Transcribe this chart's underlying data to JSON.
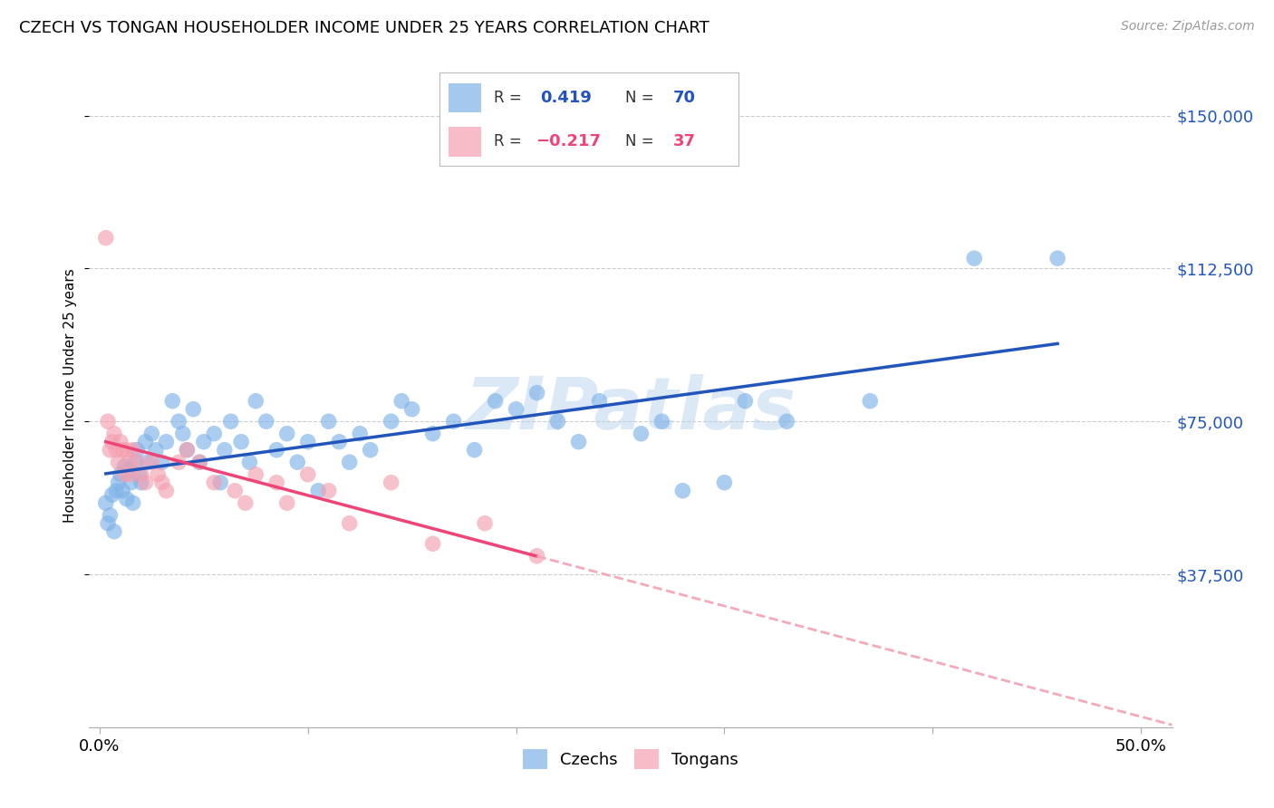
{
  "title": "CZECH VS TONGAN HOUSEHOLDER INCOME UNDER 25 YEARS CORRELATION CHART",
  "source": "Source: ZipAtlas.com",
  "ylabel": "Householder Income Under 25 years",
  "xlabel_ticks": [
    "0.0%",
    "",
    "",
    "",
    "",
    "50.0%"
  ],
  "xlabel_vals": [
    0.0,
    0.1,
    0.2,
    0.3,
    0.4,
    0.5
  ],
  "ytick_labels": [
    "$37,500",
    "$75,000",
    "$112,500",
    "$150,000"
  ],
  "ytick_vals": [
    37500,
    75000,
    112500,
    150000
  ],
  "ymin": 0,
  "ymax": 162500,
  "xmin": -0.005,
  "xmax": 0.515,
  "czech_color": "#7FB3E8",
  "tongan_color": "#F4A0B0",
  "czech_line_color": "#2255BB",
  "tongan_line_color": "#EE4477",
  "tongan_dashed_color": "#F4AABB",
  "watermark_color": "#B8D4EE",
  "czechs_x": [
    0.003,
    0.004,
    0.005,
    0.006,
    0.007,
    0.008,
    0.009,
    0.01,
    0.011,
    0.012,
    0.013,
    0.014,
    0.015,
    0.016,
    0.017,
    0.018,
    0.019,
    0.02,
    0.022,
    0.023,
    0.025,
    0.027,
    0.03,
    0.032,
    0.035,
    0.038,
    0.04,
    0.042,
    0.045,
    0.048,
    0.05,
    0.055,
    0.058,
    0.06,
    0.063,
    0.068,
    0.072,
    0.075,
    0.08,
    0.085,
    0.09,
    0.095,
    0.1,
    0.105,
    0.11,
    0.115,
    0.12,
    0.125,
    0.13,
    0.14,
    0.145,
    0.15,
    0.16,
    0.17,
    0.18,
    0.19,
    0.2,
    0.21,
    0.22,
    0.23,
    0.24,
    0.26,
    0.27,
    0.28,
    0.3,
    0.31,
    0.33,
    0.37,
    0.42,
    0.46
  ],
  "czechs_y": [
    55000,
    50000,
    52000,
    57000,
    48000,
    58000,
    60000,
    62000,
    58000,
    64000,
    56000,
    63000,
    60000,
    55000,
    65000,
    68000,
    62000,
    60000,
    70000,
    65000,
    72000,
    68000,
    65000,
    70000,
    80000,
    75000,
    72000,
    68000,
    78000,
    65000,
    70000,
    72000,
    60000,
    68000,
    75000,
    70000,
    65000,
    80000,
    75000,
    68000,
    72000,
    65000,
    70000,
    58000,
    75000,
    70000,
    65000,
    72000,
    68000,
    75000,
    80000,
    78000,
    72000,
    75000,
    68000,
    80000,
    78000,
    82000,
    75000,
    70000,
    80000,
    72000,
    75000,
    58000,
    60000,
    80000,
    75000,
    80000,
    115000,
    115000
  ],
  "tongans_x": [
    0.003,
    0.004,
    0.005,
    0.006,
    0.007,
    0.008,
    0.009,
    0.01,
    0.011,
    0.012,
    0.013,
    0.014,
    0.015,
    0.016,
    0.018,
    0.02,
    0.022,
    0.025,
    0.028,
    0.03,
    0.032,
    0.038,
    0.042,
    0.048,
    0.055,
    0.065,
    0.07,
    0.075,
    0.085,
    0.09,
    0.1,
    0.11,
    0.12,
    0.14,
    0.16,
    0.185,
    0.21
  ],
  "tongans_y": [
    120000,
    75000,
    68000,
    70000,
    72000,
    68000,
    65000,
    70000,
    68000,
    62000,
    68000,
    65000,
    62000,
    68000,
    65000,
    62000,
    60000,
    65000,
    62000,
    60000,
    58000,
    65000,
    68000,
    65000,
    60000,
    58000,
    55000,
    62000,
    60000,
    55000,
    62000,
    58000,
    50000,
    60000,
    45000,
    50000,
    42000
  ]
}
